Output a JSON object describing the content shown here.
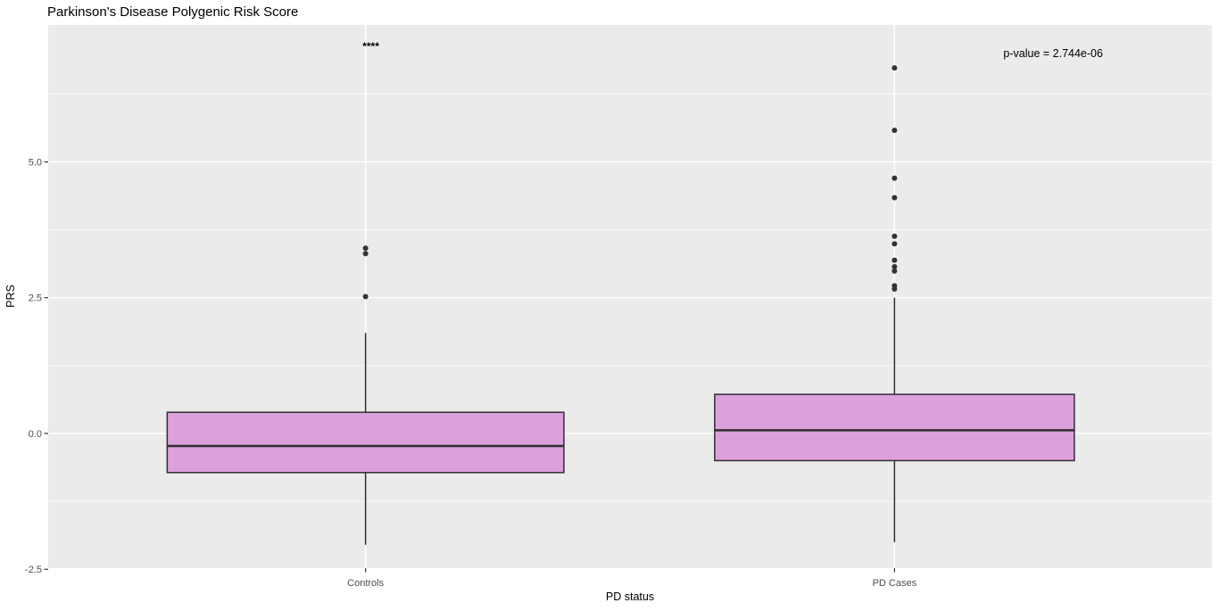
{
  "chart_data": {
    "type": "boxplot",
    "title": "Parkinson's Disease Polygenic Risk Score",
    "xlabel": "PD status",
    "ylabel": "PRS",
    "categories": [
      "Controls",
      "PD Cases"
    ],
    "ylim": [
      -2.48,
      7.52
    ],
    "y_ticks": [
      {
        "value": -2.5,
        "label": "-2.5"
      },
      {
        "value": 0.0,
        "label": "0.0"
      },
      {
        "value": 2.5,
        "label": "2.5"
      },
      {
        "value": 5.0,
        "label": "5.0"
      }
    ],
    "y_minor_ticks": [
      -1.25,
      1.25,
      3.75,
      6.25
    ],
    "grid": true,
    "legend": "none",
    "series": [
      {
        "name": "Controls",
        "x": 1,
        "box_width": 0.75,
        "q1": -0.72,
        "median": -0.23,
        "q3": 0.39,
        "whisker_low": -2.05,
        "whisker_high": 1.85,
        "outliers": [
          2.52,
          3.31,
          3.41
        ]
      },
      {
        "name": "PD Cases",
        "x": 2,
        "box_width": 0.68,
        "q1": -0.5,
        "median": 0.06,
        "q3": 0.72,
        "whisker_low": -2.0,
        "whisker_high": 2.5,
        "outliers": [
          2.66,
          2.72,
          2.99,
          3.07,
          3.19,
          3.49,
          3.63,
          4.34,
          4.7,
          5.58,
          6.73
        ]
      }
    ],
    "annotations": {
      "significance": {
        "text": "****",
        "x": 1.01,
        "y": 7.14
      },
      "p_value": {
        "text": "p-value = 2.744e-06",
        "x": 2.3,
        "y": 7.0
      }
    },
    "style": {
      "panel_bg": "#ebebeb",
      "grid_color": "#ffffff",
      "box_fill": "#dca0dc",
      "box_stroke": "#2f2f2f",
      "outlier_color": "#333333",
      "tick_label_color": "#4d4d4d",
      "tick_mark_color": "#333333",
      "annotation_color": "#000000"
    }
  }
}
